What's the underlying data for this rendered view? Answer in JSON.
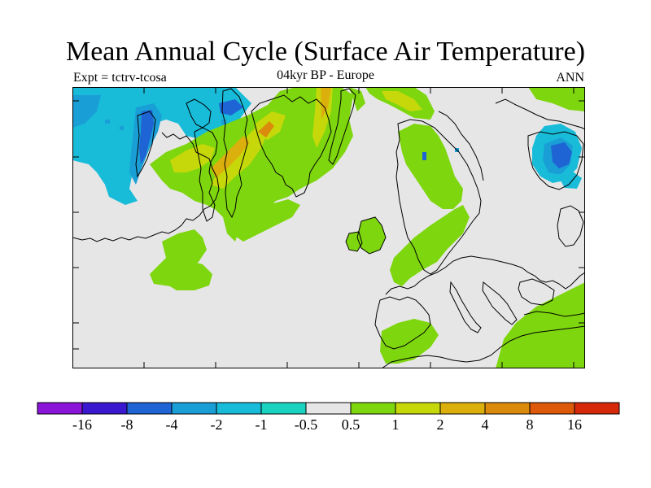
{
  "title": "Mean Annual Cycle (Surface Air Temperature)",
  "subtitle_left": "Expt = tctrv-tcosa",
  "subtitle_center": "04kyr BP - Europe",
  "subtitle_right": "ANN",
  "colorbar": {
    "boxes": [
      "#8a14d8",
      "#3a18d0",
      "#1e64d4",
      "#1a9ed6",
      "#18bcd8",
      "#1ad2c0",
      "#e6e6e6",
      "#7ed60e",
      "#c6d80a",
      "#dcb00c",
      "#dc8a0c",
      "#dc5a0a",
      "#d8280a"
    ],
    "labels": [
      "-16",
      "-8",
      "-4",
      "-2",
      "-1",
      "-0.5",
      "0.5",
      "1",
      "2",
      "4",
      "8",
      "16"
    ]
  },
  "colors": {
    "background": "#e6e6e6",
    "green": "#7ed60e",
    "yellow_green": "#c6d80a",
    "yellow": "#dcb00c",
    "orange": "#dc8a0c",
    "cyan": "#18bcd8",
    "light_blue": "#1a9ed6",
    "blue": "#1e64d4"
  }
}
